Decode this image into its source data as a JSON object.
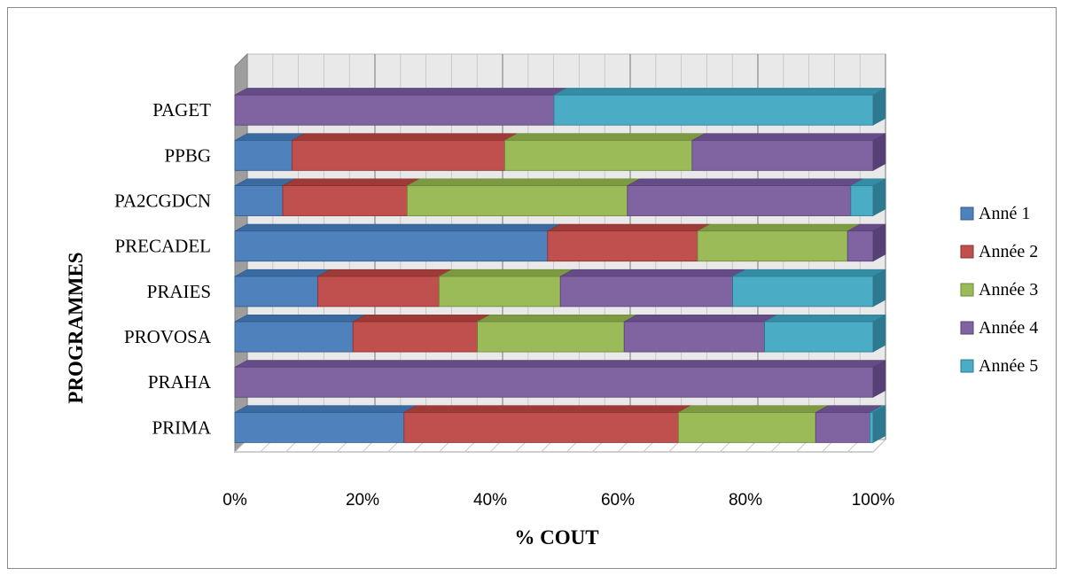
{
  "chart_data": {
    "type": "bar",
    "orientation": "horizontal",
    "stacking": "percent",
    "style": "3d",
    "title": "",
    "xlabel": "% COUT",
    "ylabel": "PROGRAMMES",
    "xlim": [
      0,
      100
    ],
    "x_ticks": [
      "0%",
      "20%",
      "40%",
      "60%",
      "80%",
      "100%"
    ],
    "categories": [
      "PRIMA",
      "PRAHA",
      "PROVOSA",
      "PRAIES",
      "PRECADEL",
      "PA2CGDCN",
      "PPBG",
      "PAGET"
    ],
    "series": [
      {
        "name": "Anné 1",
        "color": "#4f81bd",
        "top_color": "#3b6aa0",
        "side_color": "#2f5a8c",
        "values": [
          26.5,
          0,
          18.5,
          13,
          49,
          7.5,
          9,
          0
        ]
      },
      {
        "name": "Année 2",
        "color": "#c0504d",
        "top_color": "#9e3b38",
        "side_color": "#8a302d",
        "values": [
          43,
          0,
          19.5,
          19,
          23.5,
          19.5,
          33.5,
          0
        ]
      },
      {
        "name": "Année 3",
        "color": "#9bbb59",
        "top_color": "#7d9a42",
        "side_color": "#6b8737",
        "values": [
          21.5,
          0,
          23,
          19,
          23.5,
          34.5,
          29.5,
          0
        ]
      },
      {
        "name": "Année 4",
        "color": "#8064a2",
        "top_color": "#654c86",
        "side_color": "#574076",
        "values": [
          8.5,
          100,
          22,
          27,
          4,
          35,
          28.5,
          50
        ]
      },
      {
        "name": "Année 5",
        "color": "#4bacc6",
        "top_color": "#358da5",
        "side_color": "#2d7a90",
        "values": [
          0.5,
          0,
          17,
          22,
          0,
          3.5,
          0,
          50
        ]
      }
    ],
    "legend_position": "right",
    "grid": true
  }
}
